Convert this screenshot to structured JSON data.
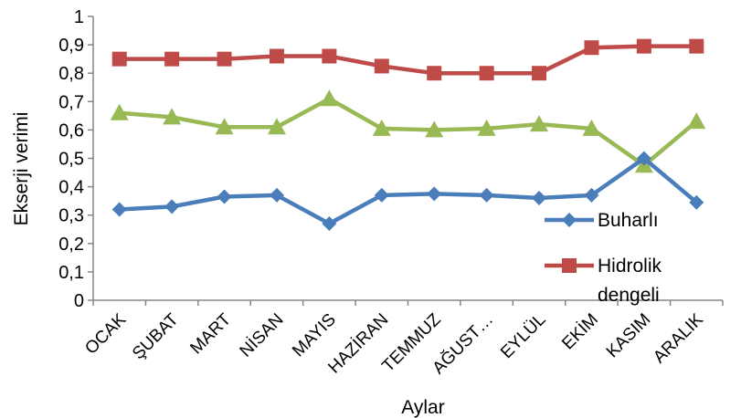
{
  "chart_data": {
    "type": "line",
    "title": "",
    "xlabel": "Aylar",
    "ylabel": "Ekserji verimi",
    "ylim": [
      0,
      1
    ],
    "y_ticks": [
      "0",
      "0,1",
      "0,2",
      "0,3",
      "0,4",
      "0,5",
      "0,6",
      "0,7",
      "0,8",
      "0,9",
      "1"
    ],
    "categories": [
      "OCAK",
      "ŞUBAT",
      "MART",
      "NİSAN",
      "MAYIS",
      "HAZİRAN",
      "TEMMUZ",
      "AĞUST…",
      "EYLÜL",
      "EKİM",
      "KASIM",
      "ARALIK"
    ],
    "grid": false,
    "legend_position": "right",
    "series": [
      {
        "name": "Buharlı",
        "color": "#4a7ebb",
        "marker": "diamond",
        "values": [
          0.32,
          0.33,
          0.365,
          0.37,
          0.27,
          0.37,
          0.375,
          0.37,
          0.36,
          0.37,
          0.5,
          0.345
        ]
      },
      {
        "name": "Hidrolik dengeli",
        "color": "#be4b48",
        "marker": "square",
        "values": [
          0.85,
          0.85,
          0.85,
          0.86,
          0.86,
          0.825,
          0.8,
          0.8,
          0.8,
          0.89,
          0.895,
          0.895
        ]
      },
      {
        "name": "",
        "color": "#98b954",
        "marker": "triangle",
        "values": [
          0.66,
          0.645,
          0.61,
          0.61,
          0.71,
          0.605,
          0.6,
          0.605,
          0.62,
          0.605,
          0.475,
          0.63
        ]
      }
    ]
  }
}
